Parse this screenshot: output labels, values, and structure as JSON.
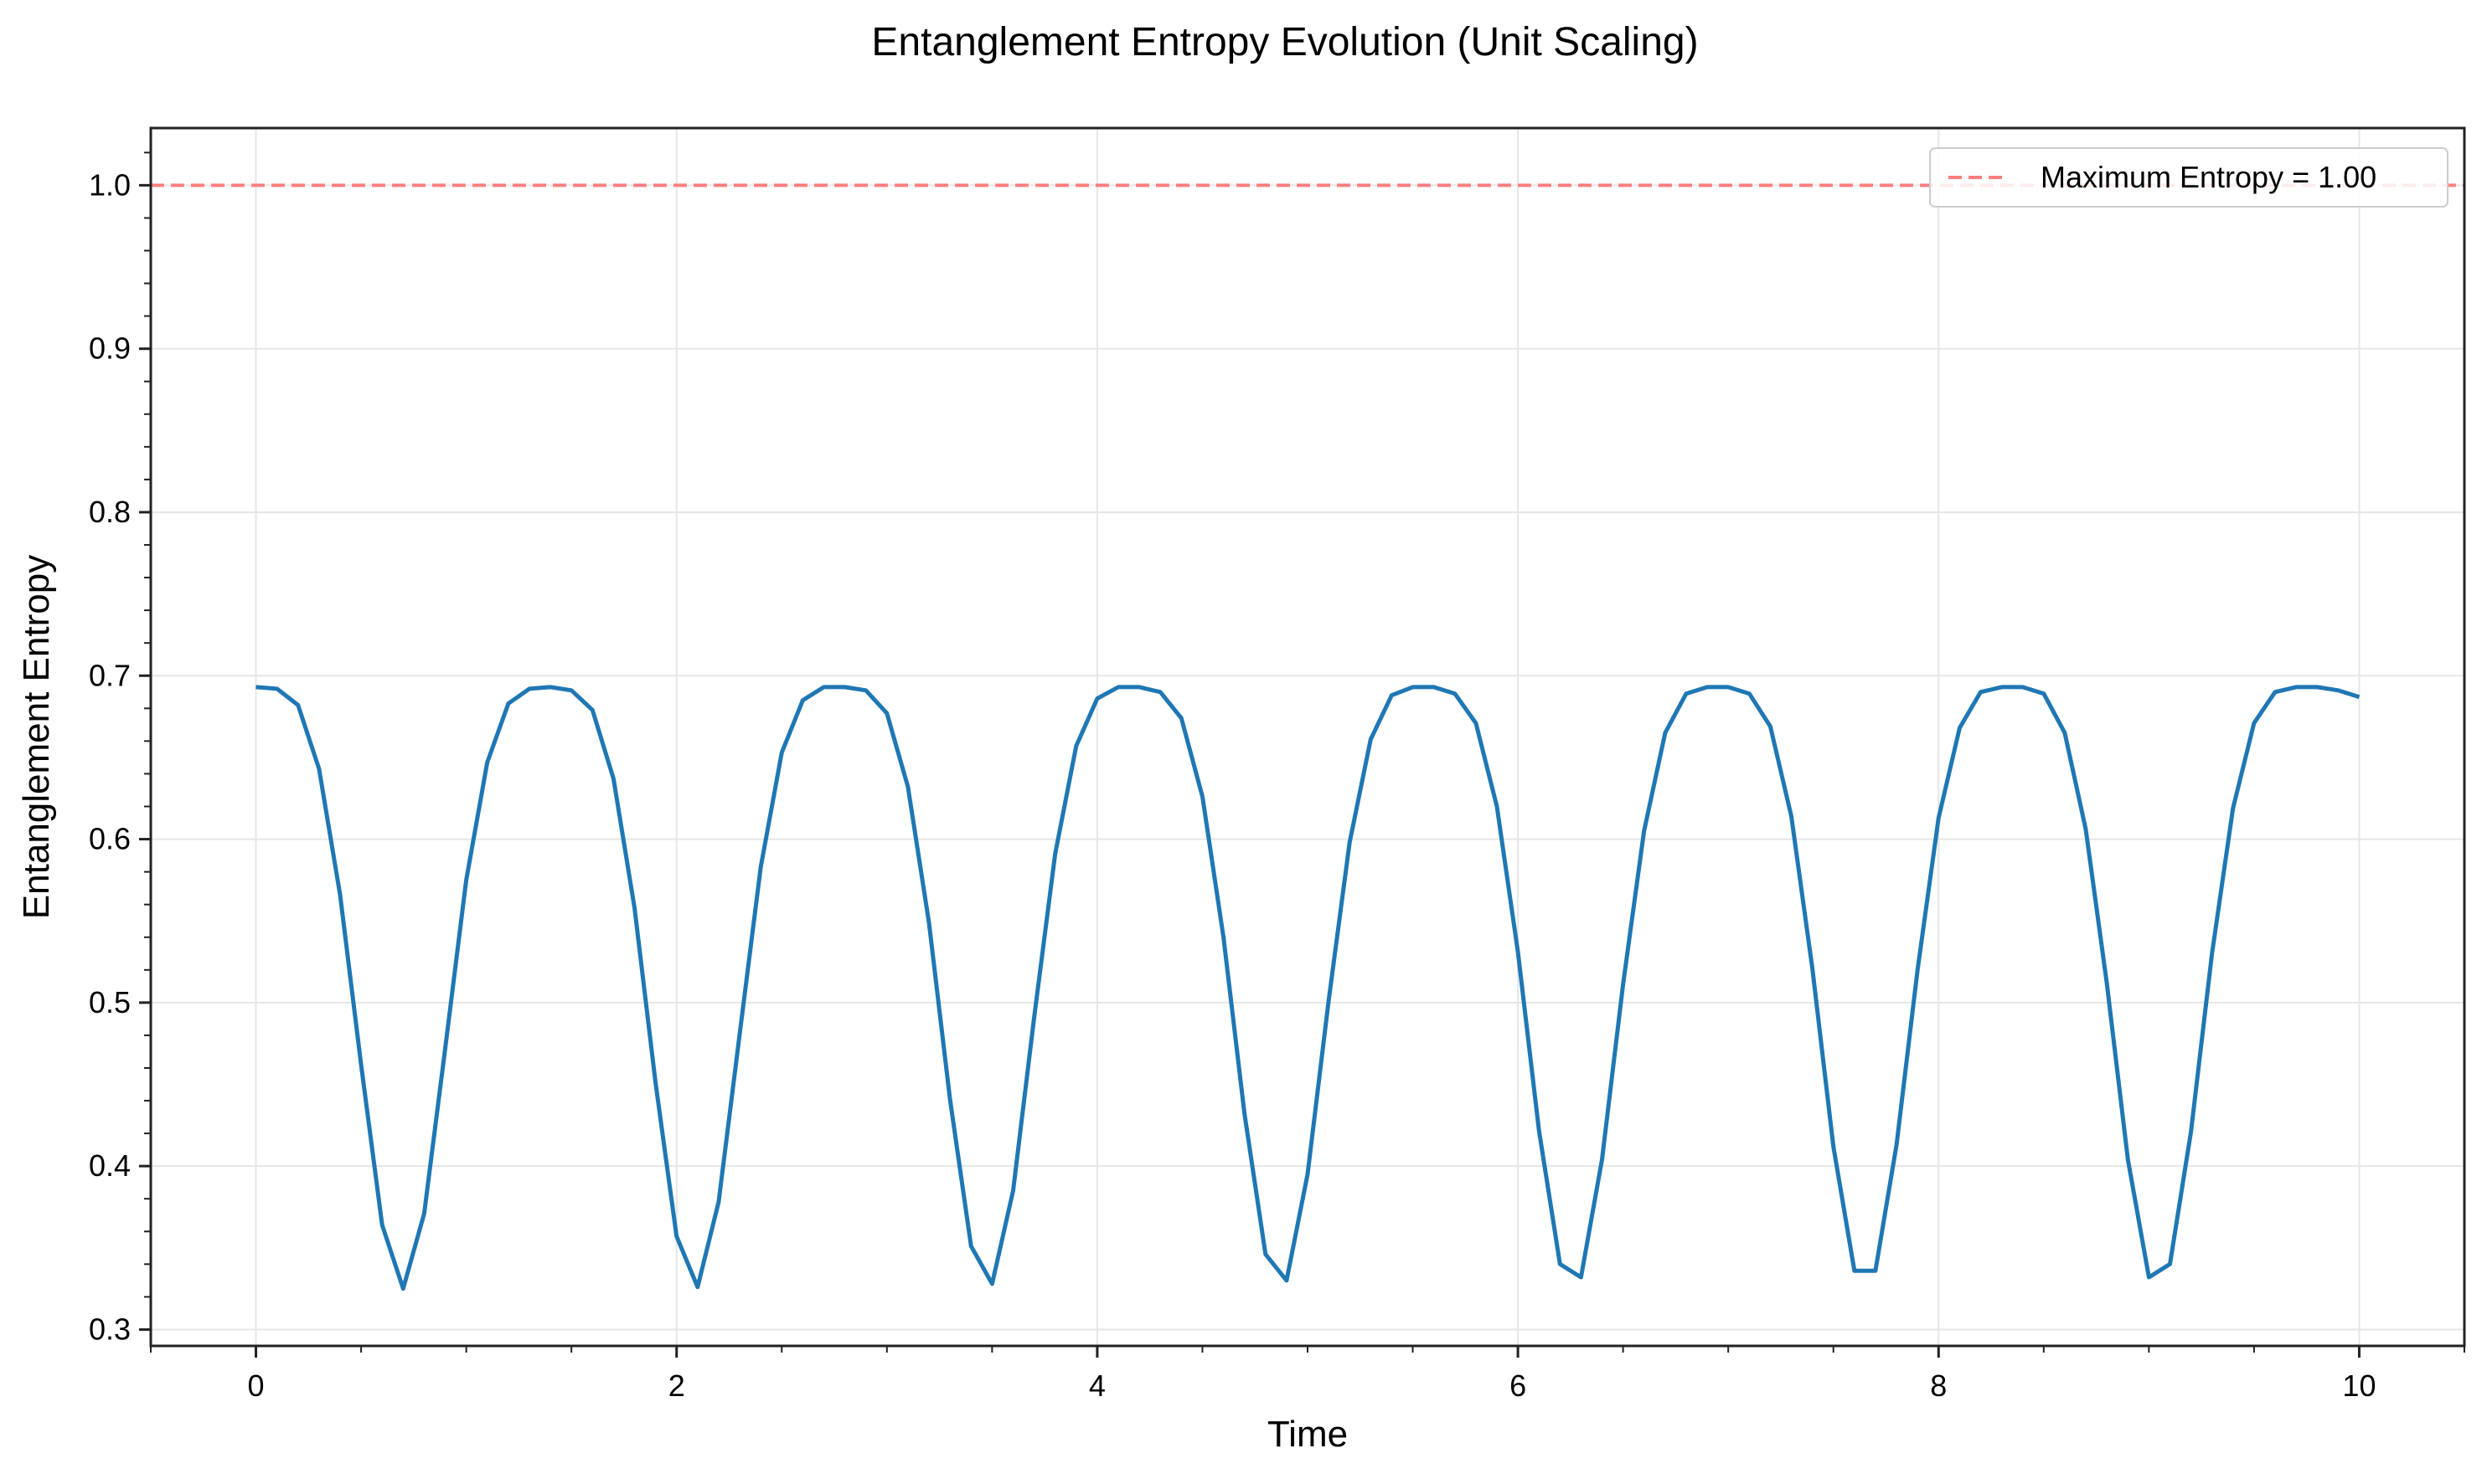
{
  "chart_data": {
    "type": "line",
    "title": "Entanglement Entropy Evolution (Unit Scaling)",
    "xlabel": "Time",
    "ylabel": "Entanglement Entropy",
    "xlim": [
      -0.5,
      10.5
    ],
    "ylim": [
      0.29,
      1.035
    ],
    "xticks": [
      0,
      2,
      4,
      6,
      8,
      10
    ],
    "xtick_labels": [
      "0",
      "2",
      "4",
      "6",
      "8",
      "10"
    ],
    "yticks": [
      0.3,
      0.4,
      0.5,
      0.6,
      0.7,
      0.8,
      0.9,
      1.0
    ],
    "ytick_labels": [
      "0.3",
      "0.4",
      "0.5",
      "0.6",
      "0.7",
      "0.8",
      "0.9",
      "1.0"
    ],
    "grid": true,
    "legend_position": "top-right",
    "colors": {
      "series": "#1f77b4",
      "reference": "#ff7f7f"
    },
    "reference_line": {
      "name": "Maximum Entropy = 1.00",
      "y": 1.0,
      "style": "dashed"
    },
    "series": [
      {
        "x": [
          0.0,
          0.1,
          0.2,
          0.3,
          0.4,
          0.5,
          0.6,
          0.7,
          0.8,
          0.9,
          1.0,
          1.1,
          1.2,
          1.3,
          1.4,
          1.5,
          1.6,
          1.7,
          1.8,
          1.9,
          2.0,
          2.1,
          2.2,
          2.3,
          2.4,
          2.5,
          2.6,
          2.7,
          2.8,
          2.9,
          3.0,
          3.1,
          3.2,
          3.3,
          3.4,
          3.5,
          3.6,
          3.7,
          3.8,
          3.9,
          4.0,
          4.1,
          4.2,
          4.3,
          4.4,
          4.5,
          4.6,
          4.7,
          4.8,
          4.9,
          5.0,
          5.1,
          5.2,
          5.3,
          5.4,
          5.5,
          5.6,
          5.7,
          5.8,
          5.9,
          6.0,
          6.1,
          6.2,
          6.3,
          6.4,
          6.5,
          6.6,
          6.7,
          6.8,
          6.9,
          7.0,
          7.1,
          7.2,
          7.3,
          7.4,
          7.5,
          7.6,
          7.7,
          7.8,
          7.9,
          8.0,
          8.1,
          8.2,
          8.3,
          8.4,
          8.5,
          8.6,
          8.7,
          8.8,
          8.9,
          9.0,
          9.1,
          9.2,
          9.3,
          9.4,
          9.5,
          9.6,
          9.7,
          9.8,
          9.9,
          10.0
        ],
        "y": [
          0.693,
          0.692,
          0.682,
          0.643,
          0.566,
          0.462,
          0.364,
          0.325,
          0.371,
          0.472,
          0.575,
          0.647,
          0.683,
          0.692,
          0.693,
          0.691,
          0.679,
          0.637,
          0.558,
          0.451,
          0.357,
          0.326,
          0.378,
          0.481,
          0.583,
          0.653,
          0.685,
          0.693,
          0.693,
          0.691,
          0.677,
          0.632,
          0.549,
          0.441,
          0.351,
          0.328,
          0.385,
          0.491,
          0.591,
          0.657,
          0.686,
          0.693,
          0.693,
          0.69,
          0.674,
          0.626,
          0.54,
          0.432,
          0.346,
          0.33,
          0.395,
          0.501,
          0.598,
          0.661,
          0.688,
          0.693,
          0.693,
          0.689,
          0.671,
          0.62,
          0.531,
          0.422,
          0.34,
          0.332,
          0.404,
          0.511,
          0.605,
          0.665,
          0.689,
          0.693,
          0.693,
          0.689,
          0.669,
          0.614,
          0.521,
          0.412,
          0.336,
          0.336,
          0.413,
          0.52,
          0.613,
          0.668,
          0.69,
          0.693,
          0.693,
          0.689,
          0.665,
          0.606,
          0.512,
          0.404,
          0.332,
          0.34,
          0.421,
          0.53,
          0.619,
          0.671,
          0.69,
          0.693,
          0.693,
          0.691,
          0.687
        ]
      }
    ]
  }
}
